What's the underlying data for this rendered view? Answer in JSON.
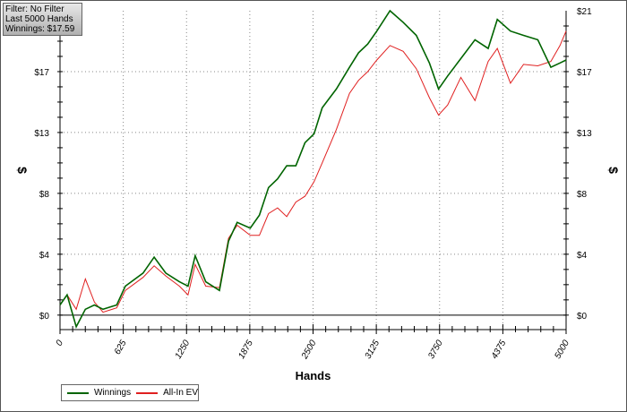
{
  "info_box": {
    "filter": "Filter: No Filter",
    "hands": "Last  5000 Hands",
    "winnings": "Winnings: $17.59"
  },
  "chart_data": {
    "type": "line",
    "title": "",
    "xlabel": "Hands",
    "ylabel": "$",
    "xlim": [
      0,
      5000
    ],
    "ylim": [
      -1,
      21
    ],
    "grid": true,
    "legend_position": "bottom-left",
    "x_ticks": [
      "0",
      "625",
      "1250",
      "1875",
      "2500",
      "3125",
      "3750",
      "4375",
      "5000"
    ],
    "x_tick_values": [
      0,
      625,
      1250,
      1875,
      2500,
      3125,
      3750,
      4375,
      5000
    ],
    "y_ticks": [
      "$0",
      "$4",
      "$8",
      "$13",
      "$17",
      "$21"
    ],
    "y_tick_values": [
      0,
      4.2,
      8.4,
      12.6,
      16.8,
      21
    ],
    "x": [
      0,
      70,
      160,
      250,
      340,
      425,
      560,
      645,
      820,
      930,
      1045,
      1180,
      1265,
      1335,
      1440,
      1575,
      1665,
      1750,
      1880,
      1970,
      2060,
      2150,
      2240,
      2330,
      2420,
      2510,
      2590,
      2730,
      2860,
      2950,
      3040,
      3130,
      3260,
      3390,
      3520,
      3650,
      3740,
      3830,
      3960,
      4100,
      4230,
      4320,
      4450,
      4580,
      4720,
      4850,
      4940,
      5000
    ],
    "series": [
      {
        "name": "Winnings",
        "color": "#006400",
        "values": [
          0.7,
          1.4,
          -0.8,
          0.4,
          0.7,
          0.4,
          0.7,
          2.0,
          2.9,
          4.0,
          2.9,
          2.3,
          2.0,
          4.1,
          2.3,
          1.7,
          5.1,
          6.4,
          6.0,
          6.9,
          8.8,
          9.4,
          10.3,
          10.3,
          11.9,
          12.5,
          14.3,
          15.6,
          17.1,
          18.1,
          18.7,
          19.6,
          21.0,
          20.2,
          19.3,
          17.4,
          15.6,
          16.5,
          17.7,
          19.0,
          18.4,
          20.4,
          19.6,
          19.3,
          19.0,
          17.1,
          17.4,
          17.6
        ]
      },
      {
        "name": "All-In EV",
        "color": "#e02020",
        "values": [
          0.7,
          1.4,
          0.4,
          2.5,
          0.9,
          0.2,
          0.5,
          1.7,
          2.6,
          3.4,
          2.7,
          2.0,
          1.4,
          3.5,
          2.0,
          1.9,
          5.3,
          6.2,
          5.5,
          5.5,
          7.0,
          7.4,
          6.8,
          7.8,
          8.2,
          9.2,
          10.5,
          12.8,
          15.3,
          16.2,
          16.8,
          17.6,
          18.6,
          18.2,
          17.0,
          15.0,
          13.8,
          14.5,
          16.4,
          14.8,
          17.5,
          18.4,
          16.0,
          17.3,
          17.2,
          17.5,
          18.6,
          19.6
        ]
      }
    ]
  }
}
